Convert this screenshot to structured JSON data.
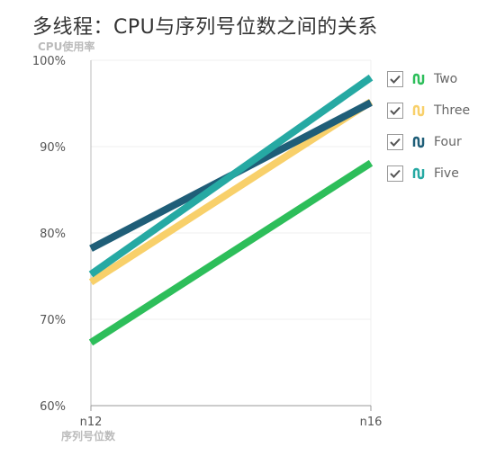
{
  "chart_data": {
    "type": "line",
    "title": "多线程：CPU与序列号位数之间的关系",
    "ylabel": "CPU使用率",
    "xlabel": "序列号位数",
    "categories": [
      "n12",
      "n16"
    ],
    "ylim": [
      60,
      100
    ],
    "y_ticks": [
      "60%",
      "70%",
      "80%",
      "90%",
      "100%"
    ],
    "grid": true,
    "legend_position": "right",
    "series": [
      {
        "name": "Two",
        "values": [
          67.3,
          88.1
        ],
        "color": "#2DBE5A"
      },
      {
        "name": "Three",
        "values": [
          74.3,
          95.2
        ],
        "color": "#F8D06A"
      },
      {
        "name": "Four",
        "values": [
          78.2,
          95.1
        ],
        "color": "#1F5E78"
      },
      {
        "name": "Five",
        "values": [
          75.2,
          98.0
        ],
        "color": "#26A9A3"
      }
    ]
  },
  "legend": {
    "items": [
      {
        "label": "Two",
        "checked": true,
        "color": "#2DBE5A",
        "icon": "line-series-icon"
      },
      {
        "label": "Three",
        "checked": true,
        "color": "#F8D06A",
        "icon": "line-series-icon"
      },
      {
        "label": "Four",
        "checked": true,
        "color": "#1F5E78",
        "icon": "line-series-icon"
      },
      {
        "label": "Five",
        "checked": true,
        "color": "#26A9A3",
        "icon": "line-series-icon"
      }
    ]
  }
}
